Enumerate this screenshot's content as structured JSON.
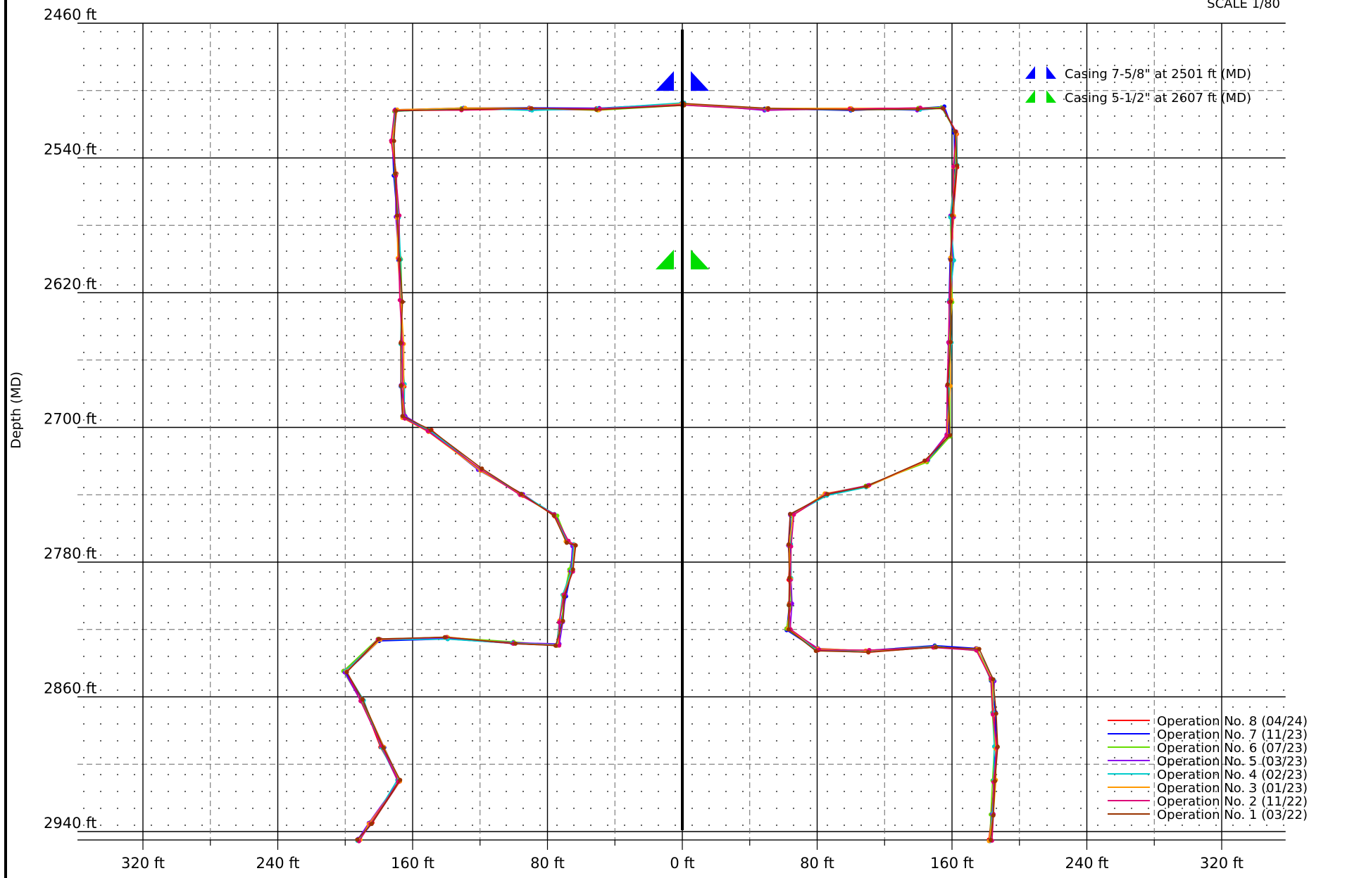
{
  "scale_label": "SCALE 1/80",
  "markers": [
    {
      "label": "Casing 7-5/8\" at 2501 ft (MD)",
      "color": "#0000ff",
      "depth": 2501
    },
    {
      "label": "Casing 5-1/2\" at 2607 ft (MD)",
      "color": "#00dd00",
      "depth": 2607
    }
  ],
  "legend": [
    {
      "label": "Operation No. 8 (04/24)",
      "color": "#ff0000"
    },
    {
      "label": "Operation No. 7 (11/23)",
      "color": "#0000ff"
    },
    {
      "label": "Operation No. 6 (07/23)",
      "color": "#66dd00"
    },
    {
      "label": "Operation No. 5 (03/23)",
      "color": "#8800ee"
    },
    {
      "label": "Operation No. 4 (02/23)",
      "color": "#00cccc"
    },
    {
      "label": "Operation No. 3 (01/23)",
      "color": "#ff9900"
    },
    {
      "label": "Operation No. 2 (11/22)",
      "color": "#dd0077"
    },
    {
      "label": "Operation No. 1 (03/22)",
      "color": "#993300"
    }
  ],
  "chart_data": {
    "type": "line",
    "ylabel": "Depth (MD)",
    "xlabel": "",
    "x_unit": "ft",
    "y_unit": "ft",
    "x_ticks": [
      -320,
      -240,
      -160,
      -80,
      0,
      80,
      160,
      240,
      320
    ],
    "x_tick_labels": [
      "320 ft",
      "240 ft",
      "160 ft",
      "80 ft",
      "0 ft",
      "80 ft",
      "160 ft",
      "240 ft",
      "320 ft"
    ],
    "y_ticks": [
      2460,
      2540,
      2620,
      2700,
      2780,
      2860,
      2940
    ],
    "y_tick_labels": [
      "2460 ft",
      "2540 ft",
      "2620 ft",
      "2700 ft",
      "2780 ft",
      "2860 ft",
      "2940 ft"
    ],
    "xlim": [
      -360,
      360
    ],
    "ylim": [
      2460,
      2945
    ],
    "grid": true,
    "legend_position": "bottom-right",
    "left_profile": [
      [
        0,
        2508
      ],
      [
        -50,
        2511
      ],
      [
        -90,
        2511
      ],
      [
        -130,
        2511
      ],
      [
        -170,
        2512
      ],
      [
        -172,
        2530
      ],
      [
        -170,
        2550
      ],
      [
        -169,
        2575
      ],
      [
        -168,
        2600
      ],
      [
        -167,
        2625
      ],
      [
        -166,
        2650
      ],
      [
        -166,
        2675
      ],
      [
        -165,
        2694
      ],
      [
        -150,
        2702
      ],
      [
        -120,
        2725
      ],
      [
        -95,
        2740
      ],
      [
        -75,
        2752
      ],
      [
        -68,
        2768
      ],
      [
        -64,
        2770
      ],
      [
        -66,
        2785
      ],
      [
        -70,
        2800
      ],
      [
        -72,
        2815
      ],
      [
        -74,
        2829
      ],
      [
        -100,
        2828
      ],
      [
        -140,
        2825
      ],
      [
        -180,
        2826
      ],
      [
        -200,
        2845
      ],
      [
        -190,
        2862
      ],
      [
        -178,
        2890
      ],
      [
        -168,
        2910
      ],
      [
        -185,
        2935
      ],
      [
        -192,
        2945
      ]
    ],
    "right_profile": [
      [
        0,
        2508
      ],
      [
        50,
        2511
      ],
      [
        100,
        2511
      ],
      [
        140,
        2511
      ],
      [
        155,
        2510
      ],
      [
        162,
        2525
      ],
      [
        162,
        2545
      ],
      [
        160,
        2575
      ],
      [
        160,
        2600
      ],
      [
        159,
        2625
      ],
      [
        159,
        2650
      ],
      [
        158,
        2675
      ],
      [
        158,
        2705
      ],
      [
        145,
        2720
      ],
      [
        110,
        2735
      ],
      [
        85,
        2740
      ],
      [
        65,
        2752
      ],
      [
        64,
        2770
      ],
      [
        64,
        2790
      ],
      [
        64,
        2805
      ],
      [
        63,
        2820
      ],
      [
        80,
        2832
      ],
      [
        110,
        2833
      ],
      [
        150,
        2830
      ],
      [
        175,
        2832
      ],
      [
        184,
        2850
      ],
      [
        185,
        2870
      ],
      [
        186,
        2890
      ],
      [
        185,
        2910
      ],
      [
        184,
        2930
      ],
      [
        183,
        2945
      ]
    ]
  }
}
